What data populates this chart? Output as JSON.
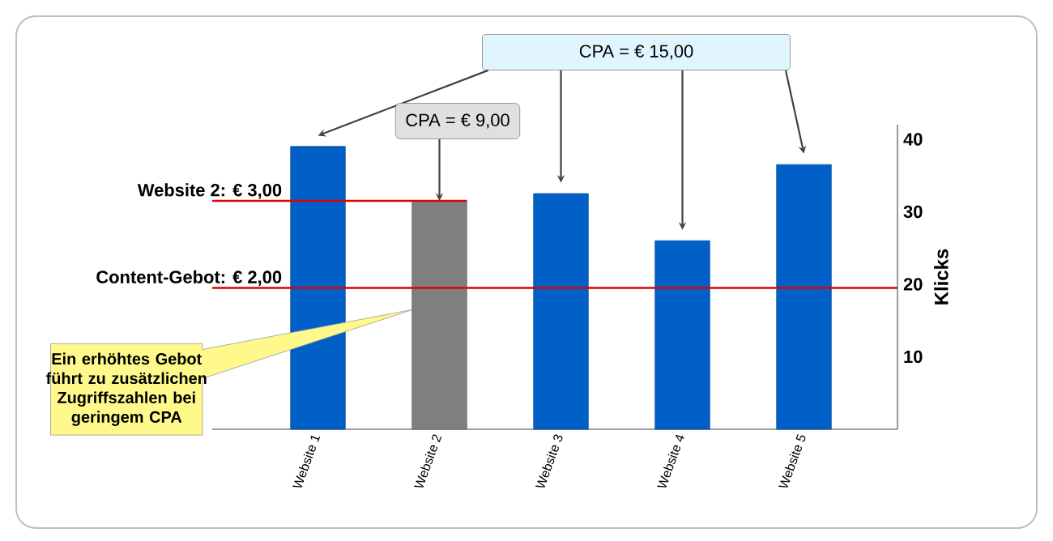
{
  "chart_data": {
    "type": "bar",
    "categories": [
      "Website 1",
      "Website 2",
      "Website 3",
      "Website 4",
      "Website 5"
    ],
    "values": [
      39,
      31.5,
      32.5,
      26,
      36.5
    ],
    "colors": [
      "#0060c8",
      "#7f7f7f",
      "#0060c8",
      "#0060c8",
      "#0060c8"
    ],
    "ylabel": "Klicks",
    "ylim": [
      0,
      42
    ],
    "yticks": [
      10,
      20,
      30,
      40
    ],
    "ref_lines": [
      {
        "axis": "y",
        "value": 31.5,
        "label": "Website 2: € 3,00",
        "color": "#e00000"
      },
      {
        "axis": "y",
        "value": 19.5,
        "label": "Content-Gebot: € 2,00",
        "color": "#e00000"
      }
    ],
    "annotations": [
      "CPA = € 15,00",
      {
        "text": "CPA = € 9,00",
        "x": "Website 2",
        "y": 31.5
      },
      "Ein erhöhtes Gebot führt zu zusätzlichen Zugriffszahlen bei geringem CPA"
    ]
  }
}
